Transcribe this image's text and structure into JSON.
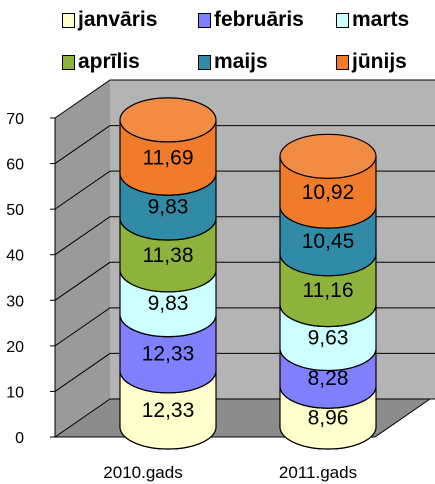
{
  "chart_data": {
    "type": "bar",
    "stacked": true,
    "style": "3d-cylinder",
    "categories": [
      "2010.gads",
      "2011.gads"
    ],
    "series": [
      {
        "name": "janvāris",
        "color": "#FFFFCC",
        "values": [
          12.33,
          8.96
        ],
        "labels": [
          "12,33",
          "8,96"
        ]
      },
      {
        "name": "februāris",
        "color": "#8080FF",
        "values": [
          12.33,
          8.28
        ],
        "labels": [
          "12,33",
          "8,28"
        ]
      },
      {
        "name": "marts",
        "color": "#CCFFFF",
        "values": [
          9.83,
          9.63
        ],
        "labels": [
          "9,83",
          "9,63"
        ]
      },
      {
        "name": "aprīlis",
        "color": "#8DB33C",
        "values": [
          11.38,
          11.16
        ],
        "labels": [
          "11,38",
          "11,16"
        ]
      },
      {
        "name": "maijs",
        "color": "#318BA6",
        "values": [
          9.83,
          10.45
        ],
        "labels": [
          "9,83",
          "10,45"
        ]
      },
      {
        "name": "jūnijs",
        "color": "#F07B2A",
        "values": [
          11.69,
          10.92
        ],
        "labels": [
          "11,69",
          "10,92"
        ]
      }
    ],
    "ylim": [
      0,
      70
    ],
    "yticks": [
      0,
      10,
      20,
      30,
      40,
      50,
      60,
      70
    ],
    "grid": true,
    "legend_position": "top"
  }
}
